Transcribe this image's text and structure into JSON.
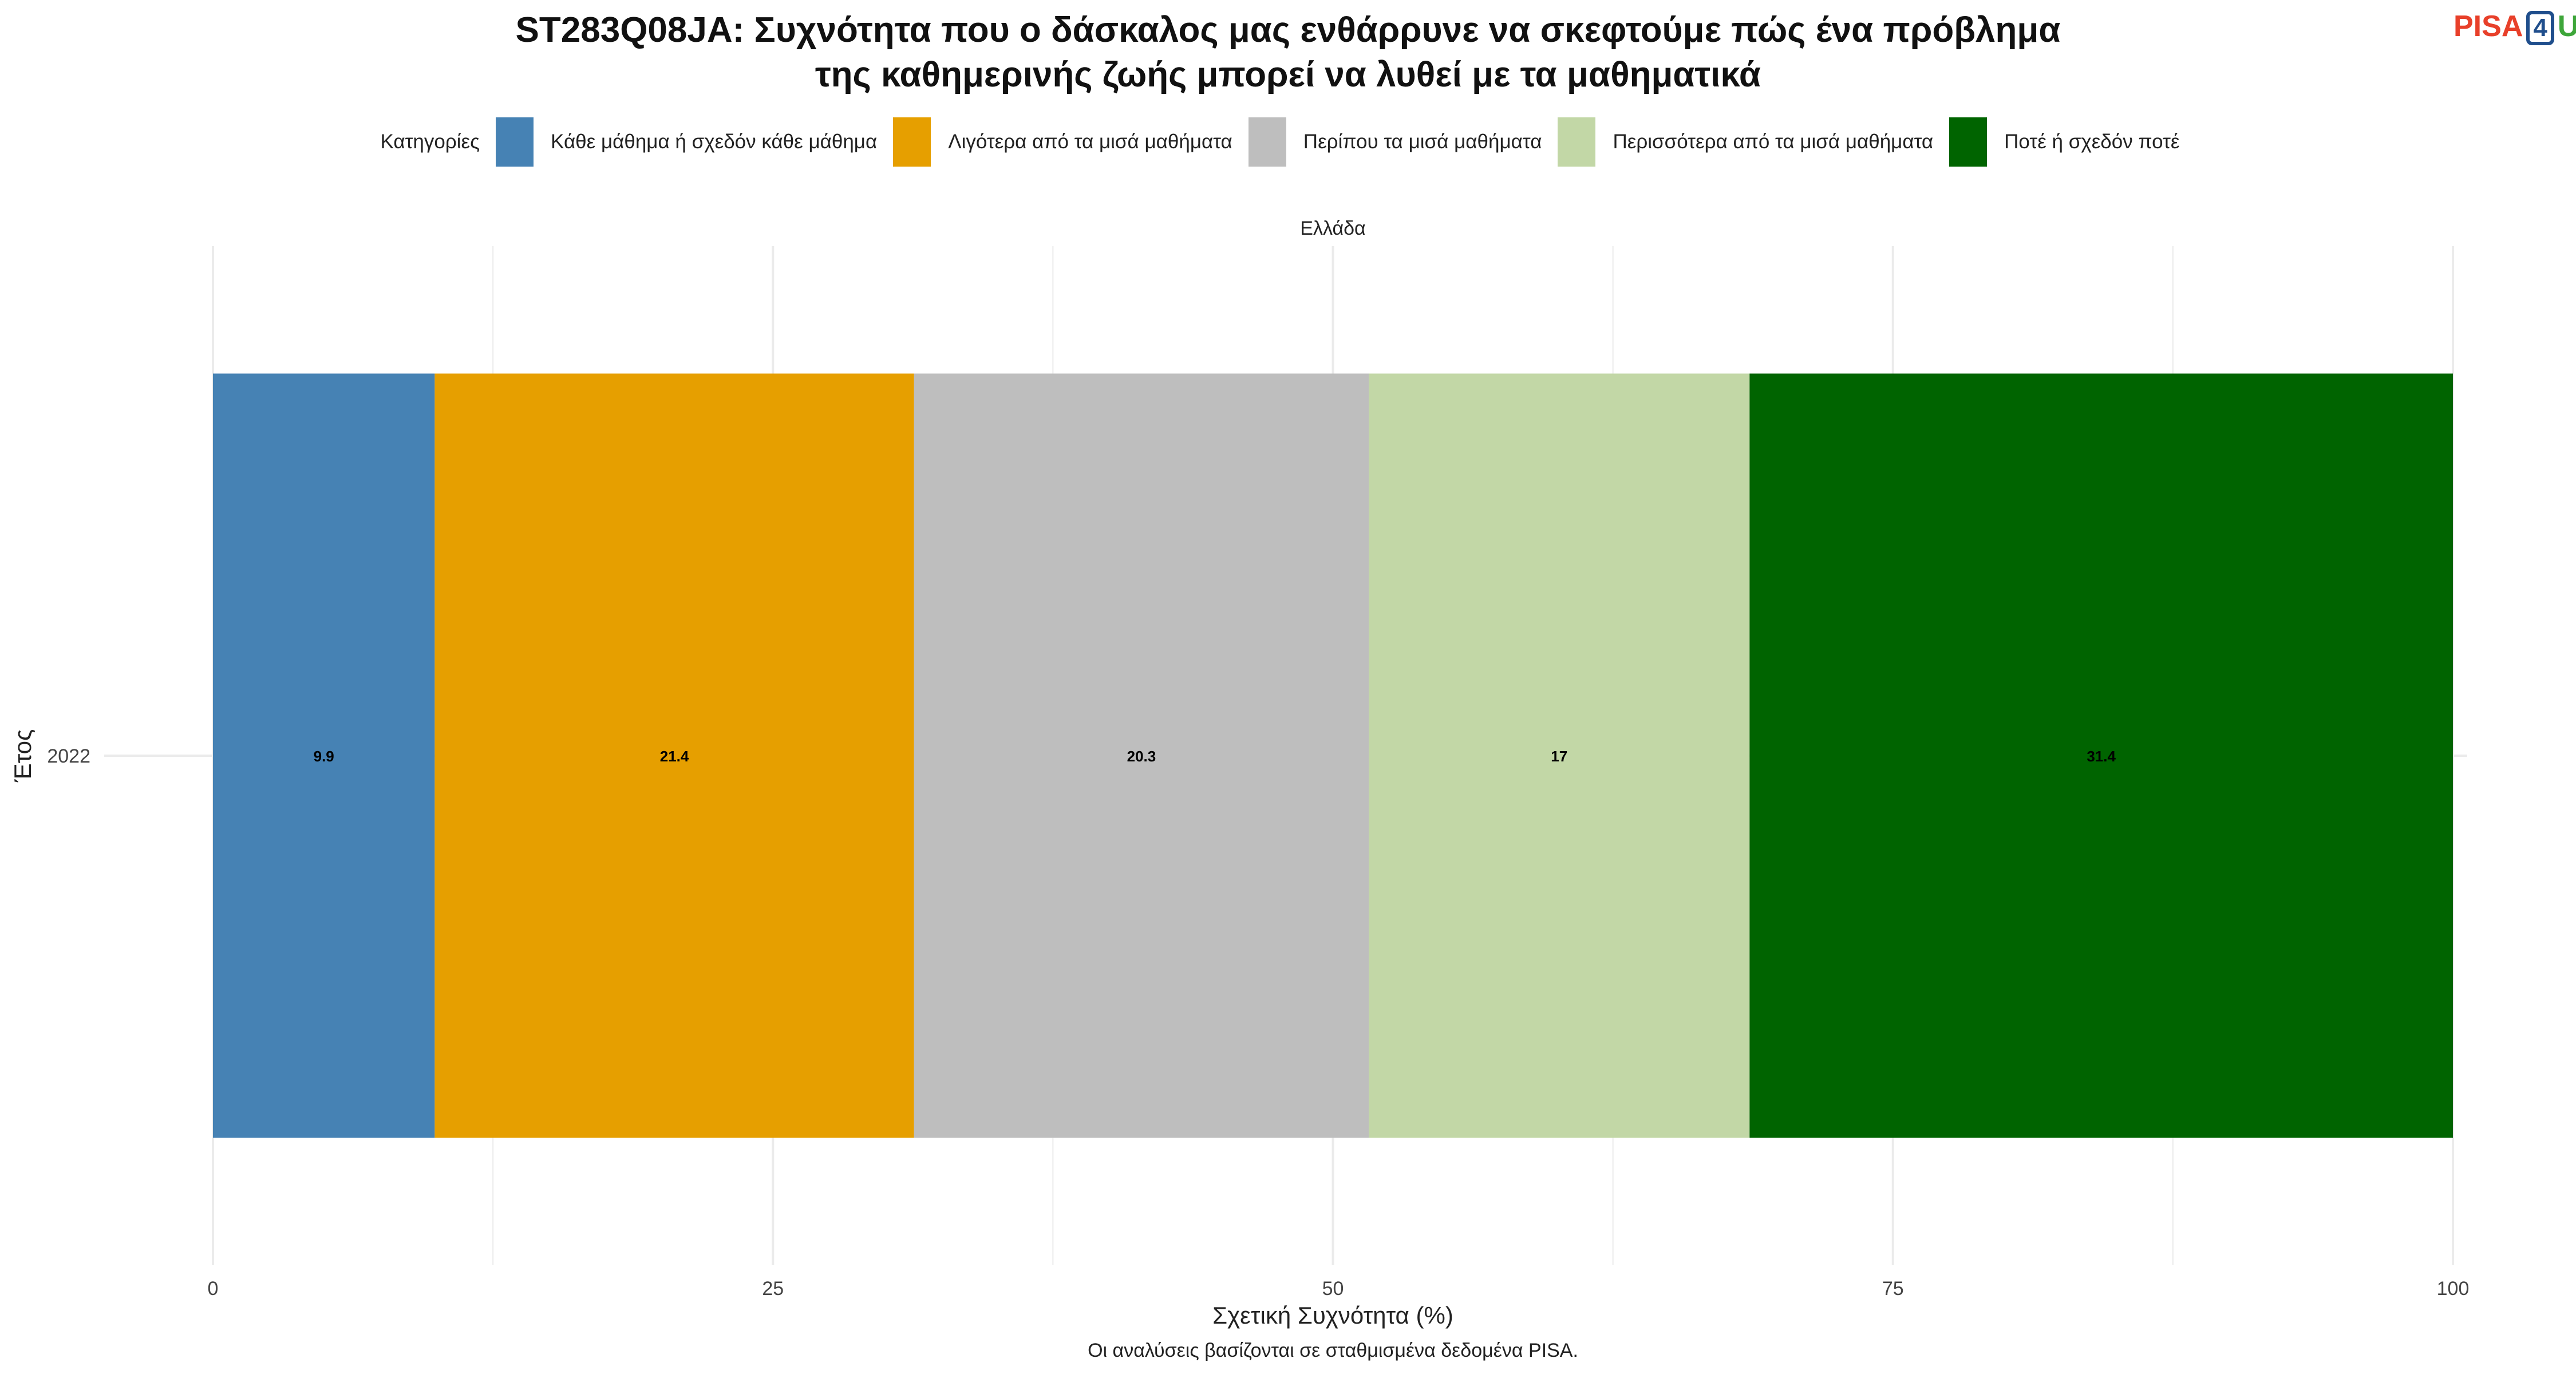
{
  "title_lines": [
    "ST283Q08JA: Συχνότητα που ο δάσκαλος μας ενθάρρυνε να σκεφτούμε πώς ένα πρόβλημα",
    "της καθημερινής ζωής μπορεί να λυθεί με τα μαθηματικά"
  ],
  "logo": {
    "part1": "PISA",
    "part2": "4",
    "part3": "U"
  },
  "legend_title": "Κατηγορίες",
  "colors": {
    "grid": "#ebebeb",
    "text": "#222222"
  },
  "chart_data": {
    "type": "bar",
    "orientation": "horizontal",
    "stacked": true,
    "title": "ST283Q08JA: Συχνότητα που ο δάσκαλος μας ενθάρρυνε να σκεφτούμε πώς ένα πρόβλημα της καθημερινής ζωής μπορεί να λυθεί με τα μαθηματικά",
    "facet": "Ελλάδα",
    "categories": [
      "2022"
    ],
    "xlabel": "Σχετική Συχνότητα (%)",
    "ylabel": "Έτος",
    "xlim": [
      0,
      100
    ],
    "xticks": [
      0,
      25,
      50,
      75,
      100
    ],
    "grid": true,
    "legend_position": "top",
    "caption": "Οι αναλύσεις βασίζονται σε σταθμισμένα δεδομένα PISA.",
    "series": [
      {
        "name": "Κάθε μάθημα ή σχεδόν κάθε μάθημα",
        "values": [
          9.9
        ],
        "color": "#4682b4",
        "label": "9.9"
      },
      {
        "name": "Λιγότερα από τα μισά μαθήματα",
        "values": [
          21.4
        ],
        "color": "#e69f00",
        "label": "21.4"
      },
      {
        "name": "Περίπου τα μισά μαθήματα",
        "values": [
          20.3
        ],
        "color": "#bebebe",
        "label": "20.3"
      },
      {
        "name": "Περισσότερα από τα μισά μαθήματα",
        "values": [
          17
        ],
        "color": "#c2d7a6",
        "label": "17"
      },
      {
        "name": "Ποτέ ή σχεδόν ποτέ",
        "values": [
          31.4
        ],
        "color": "#006400",
        "label": "31.4"
      }
    ]
  }
}
